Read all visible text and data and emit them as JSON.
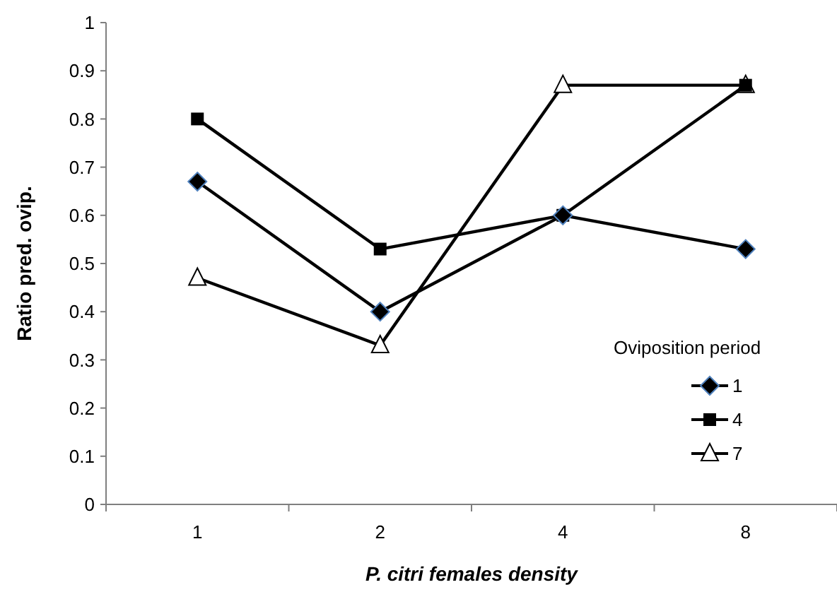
{
  "chart_data": {
    "type": "line",
    "xlabel": "P. citri females density",
    "ylabel": "Ratio  pred. ovip.",
    "legend_title": "Oviposition period",
    "categories": [
      "1",
      "2",
      "4",
      "8"
    ],
    "series": [
      {
        "name": "1",
        "color": "#000000",
        "marker": "diamond",
        "values": [
          0.67,
          0.4,
          0.6,
          0.53
        ]
      },
      {
        "name": "4",
        "color": "#000000",
        "marker": "square",
        "values": [
          0.8,
          0.53,
          0.6,
          0.87
        ]
      },
      {
        "name": "7",
        "color": "#000000",
        "marker": "triangle",
        "values": [
          0.47,
          0.33,
          0.87,
          0.87
        ]
      }
    ],
    "ylim": [
      0,
      1
    ],
    "yticks": [
      0,
      {
        "value": 0.1,
        "label": "0.1"
      },
      {
        "value": 0.2,
        "label": "0.2"
      },
      {
        "value": 0.3,
        "label": "0.3"
      },
      {
        "value": 0.4,
        "label": "0.4"
      },
      {
        "value": 0.5,
        "label": "0.5"
      },
      {
        "value": 0.6,
        "label": "0.6"
      },
      {
        "value": 0.7,
        "label": "0.7"
      },
      {
        "value": 0.8,
        "label": "0.8"
      },
      {
        "value": 0.9,
        "label": "0.9"
      },
      1
    ],
    "legend": "right",
    "grid": false,
    "line_style": "solid"
  }
}
